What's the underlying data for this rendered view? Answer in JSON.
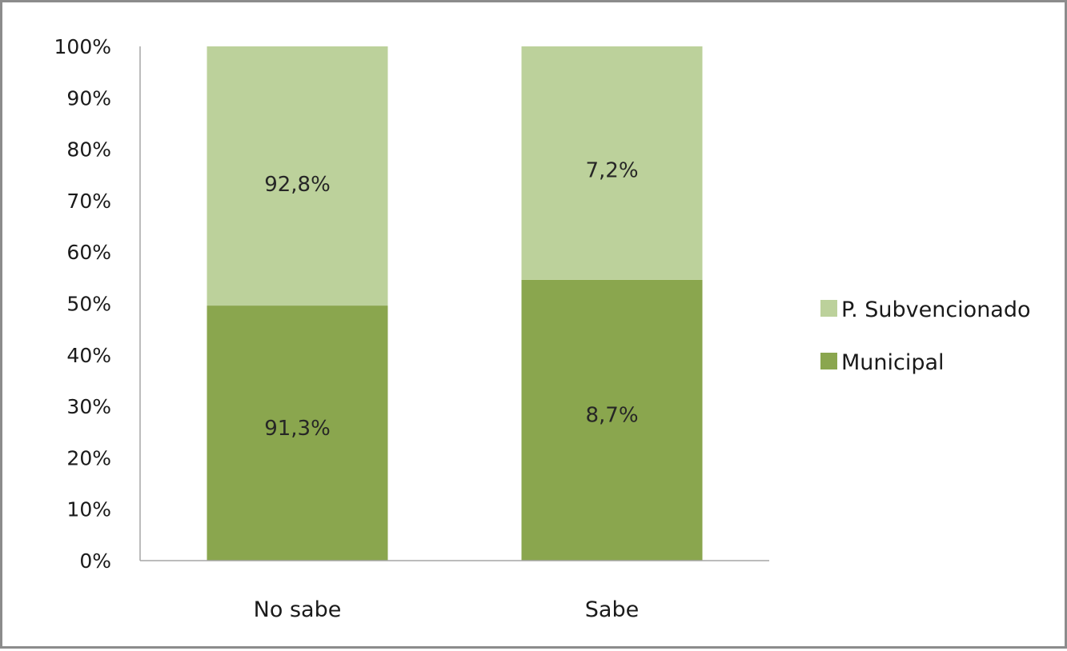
{
  "chart_data": {
    "type": "bar",
    "stacked": true,
    "percent_stacked": true,
    "categories": [
      "No sabe",
      "Sabe"
    ],
    "series": [
      {
        "name": "Municipal",
        "values": [
          49.6,
          54.6
        ],
        "data_labels": [
          "91,3%",
          "8,7%"
        ],
        "color": "#8aa64e"
      },
      {
        "name": "P. Subvencionado",
        "values": [
          50.4,
          45.4
        ],
        "data_labels": [
          "92,8%",
          "7,2%"
        ],
        "color": "#bcd19b"
      }
    ],
    "y_ticks": [
      "0%",
      "10%",
      "20%",
      "30%",
      "40%",
      "50%",
      "60%",
      "70%",
      "80%",
      "90%",
      "100%"
    ],
    "ylim": [
      0,
      100
    ],
    "grid": false,
    "legend_position": "right",
    "axis_color": "#a6a6a6"
  }
}
